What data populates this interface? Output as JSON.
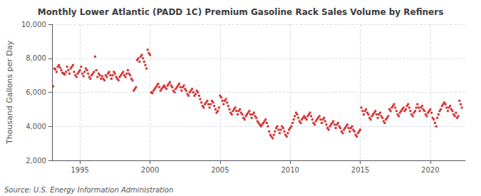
{
  "chart_data": {
    "type": "scatter",
    "title": "Monthly Lower Atlantic (PADD 1C) Premium Gasoline Rack Sales Volume by Refiners",
    "ylabel": "Thousand Gallons per Day",
    "annotations": [
      "Source: U.S. Energy Information Administration"
    ],
    "color": "#cc0000",
    "marker": "square",
    "grid": true,
    "xlim": [
      1993.0,
      2022.5
    ],
    "xticks": [
      1995,
      2000,
      2005,
      2010,
      2015,
      2020
    ],
    "ylim": [
      2000,
      10000
    ],
    "yticks": [
      {
        "value": 2000,
        "label": "2,000"
      },
      {
        "value": 4000,
        "label": "4,000"
      },
      {
        "value": 6000,
        "label": "6,000"
      },
      {
        "value": 8000,
        "label": "8,000"
      },
      {
        "value": 10000,
        "label": "10,000"
      }
    ],
    "x": [
      1993.083,
      1993.167,
      1993.25,
      1993.333,
      1993.417,
      1993.5,
      1993.583,
      1993.667,
      1993.75,
      1993.833,
      1993.917,
      1994.0,
      1994.083,
      1994.167,
      1994.25,
      1994.333,
      1994.417,
      1994.5,
      1994.583,
      1994.667,
      1994.75,
      1994.833,
      1994.917,
      1995.0,
      1995.083,
      1995.167,
      1995.25,
      1995.333,
      1995.417,
      1995.5,
      1995.583,
      1995.667,
      1995.75,
      1995.833,
      1995.917,
      1996.0,
      1996.083,
      1996.167,
      1996.25,
      1996.333,
      1996.417,
      1996.5,
      1996.583,
      1996.667,
      1996.75,
      1996.833,
      1996.917,
      1997.0,
      1997.083,
      1997.167,
      1997.25,
      1997.333,
      1997.417,
      1997.5,
      1997.583,
      1997.667,
      1997.75,
      1997.833,
      1997.917,
      1998.0,
      1998.083,
      1998.167,
      1998.25,
      1998.333,
      1998.417,
      1998.5,
      1998.583,
      1998.667,
      1998.75,
      1998.833,
      1998.917,
      1999.0,
      1999.083,
      1999.167,
      1999.25,
      1999.333,
      1999.417,
      1999.5,
      1999.583,
      1999.667,
      1999.75,
      1999.833,
      1999.917,
      2000.0,
      2000.083,
      2000.167,
      2000.25,
      2000.333,
      2000.417,
      2000.5,
      2000.583,
      2000.667,
      2000.75,
      2000.833,
      2000.917,
      2001.0,
      2001.083,
      2001.167,
      2001.25,
      2001.333,
      2001.417,
      2001.5,
      2001.583,
      2001.667,
      2001.75,
      2001.833,
      2001.917,
      2002.0,
      2002.083,
      2002.167,
      2002.25,
      2002.333,
      2002.417,
      2002.5,
      2002.583,
      2002.667,
      2002.75,
      2002.833,
      2002.917,
      2003.0,
      2003.083,
      2003.167,
      2003.25,
      2003.333,
      2003.417,
      2003.5,
      2003.583,
      2003.667,
      2003.75,
      2003.833,
      2003.917,
      2004.0,
      2004.083,
      2004.167,
      2004.25,
      2004.333,
      2004.417,
      2004.5,
      2004.583,
      2004.667,
      2004.75,
      2004.833,
      2004.917,
      2005.0,
      2005.083,
      2005.167,
      2005.25,
      2005.333,
      2005.417,
      2005.5,
      2005.583,
      2005.667,
      2005.75,
      2005.833,
      2005.917,
      2006.0,
      2006.083,
      2006.167,
      2006.25,
      2006.333,
      2006.417,
      2006.5,
      2006.583,
      2006.667,
      2006.75,
      2006.833,
      2006.917,
      2007.0,
      2007.083,
      2007.167,
      2007.25,
      2007.333,
      2007.417,
      2007.5,
      2007.583,
      2007.667,
      2007.75,
      2007.833,
      2007.917,
      2008.0,
      2008.083,
      2008.167,
      2008.25,
      2008.333,
      2008.417,
      2008.5,
      2008.583,
      2008.667,
      2008.75,
      2008.833,
      2008.917,
      2009.0,
      2009.083,
      2009.167,
      2009.25,
      2009.333,
      2009.417,
      2009.5,
      2009.583,
      2009.667,
      2009.75,
      2009.833,
      2009.917,
      2010.0,
      2010.083,
      2010.167,
      2010.25,
      2010.333,
      2010.417,
      2010.5,
      2010.583,
      2010.667,
      2010.75,
      2010.833,
      2010.917,
      2011.0,
      2011.083,
      2011.167,
      2011.25,
      2011.333,
      2011.417,
      2011.5,
      2011.583,
      2011.667,
      2011.75,
      2011.833,
      2011.917,
      2012.0,
      2012.083,
      2012.167,
      2012.25,
      2012.333,
      2012.417,
      2012.5,
      2012.583,
      2012.667,
      2012.75,
      2012.833,
      2012.917,
      2013.0,
      2013.083,
      2013.167,
      2013.25,
      2013.333,
      2013.417,
      2013.5,
      2013.583,
      2013.667,
      2013.75,
      2013.833,
      2013.917,
      2014.0,
      2014.083,
      2014.167,
      2014.25,
      2014.333,
      2014.417,
      2014.5,
      2014.583,
      2014.667,
      2014.75,
      2014.833,
      2014.917,
      2015.0,
      2015.083,
      2015.167,
      2015.25,
      2015.333,
      2015.417,
      2015.5,
      2015.583,
      2015.667,
      2015.75,
      2015.833,
      2015.917,
      2016.0,
      2016.083,
      2016.167,
      2016.25,
      2016.333,
      2016.417,
      2016.5,
      2016.583,
      2016.667,
      2016.75,
      2016.833,
      2016.917,
      2017.0,
      2017.083,
      2017.167,
      2017.25,
      2017.333,
      2017.417,
      2017.5,
      2017.583,
      2017.667,
      2017.75,
      2017.833,
      2017.917,
      2018.0,
      2018.083,
      2018.167,
      2018.25,
      2018.333,
      2018.417,
      2018.5,
      2018.583,
      2018.667,
      2018.75,
      2018.833,
      2018.917,
      2019.0,
      2019.083,
      2019.167,
      2019.25,
      2019.333,
      2019.417,
      2019.5,
      2019.583,
      2019.667,
      2019.75,
      2019.833,
      2019.917,
      2020.0,
      2020.083,
      2020.167,
      2020.25,
      2020.333,
      2020.417,
      2020.5,
      2020.583,
      2020.667,
      2020.75,
      2020.833,
      2020.917,
      2021.0,
      2021.083,
      2021.167,
      2021.25,
      2021.333,
      2021.417,
      2021.5,
      2021.583,
      2021.667,
      2021.75,
      2021.833,
      2021.917,
      2022.0,
      2022.083,
      2022.167,
      2022.25
    ],
    "values": [
      6350,
      7400,
      7350,
      7200,
      7500,
      7600,
      7450,
      7300,
      7150,
      7100,
      7050,
      7200,
      7500,
      7300,
      7100,
      7400,
      7500,
      7600,
      7200,
      7000,
      6900,
      7100,
      7200,
      7300,
      7500,
      7100,
      6950,
      7200,
      7400,
      7300,
      7100,
      6900,
      6800,
      7000,
      7100,
      7200,
      8100,
      7300,
      6900,
      7100,
      7000,
      6800,
      6950,
      6800,
      6700,
      7000,
      6900,
      7100,
      7200,
      7000,
      6800,
      7000,
      7200,
      7100,
      6900,
      6800,
      6700,
      6900,
      7000,
      7100,
      7200,
      7000,
      6900,
      7100,
      7300,
      7100,
      7000,
      6800,
      6700,
      6100,
      6200,
      6300,
      7900,
      8000,
      7800,
      8100,
      8200,
      8000,
      7800,
      7600,
      7400,
      8500,
      8300,
      8200,
      6000,
      5950,
      6100,
      6200,
      6300,
      6400,
      6500,
      6300,
      6100,
      6200,
      6300,
      6400,
      6300,
      6200,
      6400,
      6500,
      6600,
      6400,
      6300,
      6100,
      6000,
      6200,
      6300,
      6400,
      6500,
      6300,
      6100,
      6300,
      6400,
      6200,
      6100,
      5900,
      5800,
      6000,
      6100,
      6200,
      6000,
      5800,
      5900,
      6100,
      6000,
      5800,
      5600,
      5400,
      5200,
      5100,
      5300,
      5400,
      5500,
      5300,
      5100,
      5300,
      5500,
      5400,
      5200,
      5000,
      4800,
      4900,
      5100,
      5800,
      5700,
      5500,
      5300,
      5500,
      5600,
      5400,
      5200,
      5000,
      4800,
      4700,
      4900,
      5000,
      5100,
      4900,
      4700,
      4900,
      5000,
      4800,
      4700,
      4500,
      4400,
      4600,
      4700,
      4800,
      4900,
      4700,
      4500,
      4700,
      4800,
      4600,
      4500,
      4300,
      4200,
      4100,
      4000,
      4100,
      4200,
      4300,
      4400,
      4200,
      4000,
      3700,
      3500,
      3400,
      3300,
      3500,
      3700,
      3900,
      4000,
      3800,
      3600,
      3800,
      4000,
      3900,
      3700,
      3500,
      3400,
      3600,
      3800,
      3900,
      4000,
      4200,
      4400,
      4600,
      4800,
      4700,
      4500,
      4300,
      4200,
      4400,
      4500,
      4600,
      4500,
      4400,
      4600,
      4700,
      4800,
      4600,
      4400,
      4200,
      4100,
      4300,
      4400,
      4500,
      4600,
      4400,
      4200,
      4400,
      4500,
      4300,
      4100,
      3900,
      3800,
      4000,
      4100,
      4200,
      4300,
      4100,
      3900,
      4100,
      4200,
      4000,
      3900,
      3700,
      3600,
      3800,
      3900,
      4000,
      4100,
      3900,
      3700,
      3900,
      4000,
      3800,
      3700,
      3500,
      3400,
      3600,
      3700,
      3800,
      5100,
      4900,
      4700,
      4900,
      5000,
      4800,
      4700,
      4500,
      4400,
      4600,
      4700,
      4800,
      4900,
      4700,
      4500,
      4700,
      4800,
      4600,
      4500,
      4300,
      4200,
      4400,
      4500,
      4600,
      5000,
      4900,
      5100,
      5200,
      5300,
      5100,
      4900,
      4700,
      4600,
      4800,
      4900,
      5000,
      5100,
      4900,
      5000,
      5200,
      5300,
      5100,
      4900,
      4700,
      4600,
      4800,
      4900,
      5100,
      5300,
      5100,
      4900,
      5100,
      5200,
      5000,
      4900,
      4700,
      4600,
      4800,
      4900,
      5000,
      4800,
      4500,
      4400,
      4200,
      4000,
      4500,
      4700,
      4900,
      5000,
      5200,
      5300,
      5400,
      5300,
      5100,
      4900,
      5100,
      5200,
      5000,
      4900,
      4700,
      4600,
      4800,
      4500,
      4600,
      5500,
      5300,
      5100
    ]
  }
}
